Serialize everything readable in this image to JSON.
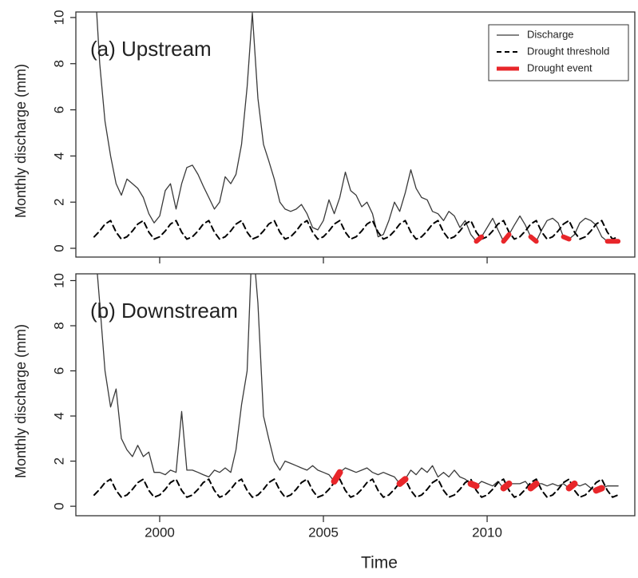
{
  "chart_data": [
    {
      "type": "line",
      "annotation": "(a) Upstream",
      "ylabel": "Monthly discharge (mm)",
      "x": [
        1998,
        1998.17,
        1998.33,
        1998.5,
        1998.67,
        1998.83,
        1999,
        1999.17,
        1999.33,
        1999.5,
        1999.67,
        1999.83,
        2000,
        2000.17,
        2000.33,
        2000.5,
        2000.67,
        2000.83,
        2001,
        2001.17,
        2001.33,
        2001.5,
        2001.67,
        2001.83,
        2002,
        2002.17,
        2002.33,
        2002.5,
        2002.67,
        2002.83,
        2003,
        2003.17,
        2003.33,
        2003.5,
        2003.67,
        2003.83,
        2004,
        2004.17,
        2004.33,
        2004.5,
        2004.67,
        2004.83,
        2005,
        2005.17,
        2005.33,
        2005.5,
        2005.67,
        2005.83,
        2006,
        2006.17,
        2006.33,
        2006.5,
        2006.67,
        2006.83,
        2007,
        2007.17,
        2007.33,
        2007.5,
        2007.67,
        2007.83,
        2008,
        2008.17,
        2008.33,
        2008.5,
        2008.67,
        2008.83,
        2009,
        2009.17,
        2009.33,
        2009.5,
        2009.67,
        2009.83,
        2010,
        2010.17,
        2010.33,
        2010.5,
        2010.67,
        2010.83,
        2011,
        2011.17,
        2011.33,
        2011.5,
        2011.67,
        2011.83,
        2012,
        2012.17,
        2012.33,
        2012.5,
        2012.67,
        2012.83,
        2013,
        2013.17,
        2013.33,
        2013.5,
        2013.67,
        2013.83,
        2014
      ],
      "series": [
        {
          "name": "Discharge",
          "color": "#3a3a3a",
          "width": 1.3,
          "dash": false,
          "values": [
            12,
            8,
            5.5,
            4,
            2.8,
            2.3,
            3,
            2.8,
            2.6,
            2.2,
            1.5,
            1.1,
            1.4,
            2.5,
            2.8,
            1.7,
            2.8,
            3.5,
            3.6,
            3.2,
            2.7,
            2.2,
            1.7,
            2,
            3.1,
            2.8,
            3.2,
            4.5,
            7,
            10.2,
            6.5,
            4.5,
            3.8,
            3,
            2,
            1.7,
            1.6,
            1.7,
            1.9,
            1.5,
            0.9,
            0.8,
            1.2,
            2.1,
            1.5,
            2.2,
            3.3,
            2.5,
            2.3,
            1.8,
            2,
            1.5,
            0.5,
            0.6,
            1.2,
            2,
            1.6,
            2.4,
            3.4,
            2.6,
            2.2,
            2.1,
            1.6,
            1.5,
            1.2,
            1.6,
            1.4,
            0.9,
            1.2,
            0.6,
            0.3,
            0.5,
            0.9,
            1.3,
            0.8,
            0.3,
            0.6,
            1,
            1.4,
            1,
            0.5,
            0.3,
            0.8,
            1.2,
            1.3,
            1.1,
            0.5,
            0.4,
            0.6,
            1.1,
            1.3,
            1.2,
            1,
            0.5,
            0.3,
            0.3,
            0.3
          ]
        },
        {
          "name": "Drought threshold",
          "color": "#000000",
          "width": 2,
          "dash": true,
          "values": [
            0.5,
            0.75,
            1.05,
            1.2,
            0.7,
            0.4,
            0.5,
            0.75,
            1.05,
            1.2,
            0.7,
            0.4,
            0.5,
            0.75,
            1.05,
            1.2,
            0.7,
            0.4,
            0.5,
            0.75,
            1.05,
            1.2,
            0.7,
            0.4,
            0.5,
            0.75,
            1.05,
            1.2,
            0.7,
            0.4,
            0.5,
            0.75,
            1.05,
            1.2,
            0.7,
            0.4,
            0.5,
            0.75,
            1.05,
            1.2,
            0.7,
            0.4,
            0.5,
            0.75,
            1.05,
            1.2,
            0.7,
            0.4,
            0.5,
            0.75,
            1.05,
            1.2,
            0.7,
            0.4,
            0.5,
            0.75,
            1.05,
            1.2,
            0.7,
            0.4,
            0.5,
            0.75,
            1.05,
            1.2,
            0.7,
            0.4,
            0.5,
            0.75,
            1.05,
            1.2,
            0.7,
            0.4,
            0.5,
            0.75,
            1.05,
            1.2,
            0.7,
            0.4,
            0.5,
            0.75,
            1.05,
            1.2,
            0.7,
            0.4,
            0.5,
            0.75,
            1.05,
            1.2,
            0.7,
            0.4,
            0.5,
            0.75,
            1.05,
            1.2,
            0.7,
            0.4,
            0.5
          ]
        },
        {
          "name": "Drought event",
          "color": "#e8262a",
          "width": 6,
          "dash": false,
          "values": [
            null,
            null,
            null,
            null,
            null,
            null,
            null,
            null,
            null,
            null,
            null,
            null,
            null,
            null,
            null,
            null,
            null,
            null,
            null,
            null,
            null,
            null,
            null,
            null,
            null,
            null,
            null,
            null,
            null,
            null,
            null,
            null,
            null,
            null,
            null,
            null,
            null,
            null,
            null,
            null,
            null,
            null,
            null,
            null,
            null,
            null,
            null,
            null,
            null,
            null,
            null,
            null,
            null,
            null,
            null,
            null,
            null,
            null,
            null,
            null,
            null,
            null,
            null,
            null,
            null,
            null,
            null,
            null,
            null,
            null,
            0.3,
            0.5,
            null,
            null,
            null,
            0.3,
            0.6,
            null,
            null,
            null,
            0.5,
            0.3,
            null,
            null,
            null,
            null,
            0.5,
            0.4,
            null,
            null,
            null,
            null,
            null,
            null,
            0.3,
            0.3,
            0.3
          ]
        }
      ],
      "xlim": [
        1997.44,
        2014.51
      ],
      "xticks": [
        2000,
        2005,
        2010
      ],
      "show_xtick_labels": false,
      "ylim": [
        -0.38,
        10.24
      ],
      "yticks": [
        0,
        2,
        4,
        6,
        8,
        10
      ],
      "legend": "top-right"
    },
    {
      "type": "line",
      "annotation": "(b) Downstream",
      "ylabel": "Monthly discharge (mm)",
      "xlabel": "Time",
      "x": [
        1998,
        1998.17,
        1998.33,
        1998.5,
        1998.67,
        1998.83,
        1999,
        1999.17,
        1999.33,
        1999.5,
        1999.67,
        1999.83,
        2000,
        2000.17,
        2000.33,
        2000.5,
        2000.67,
        2000.83,
        2001,
        2001.17,
        2001.33,
        2001.5,
        2001.67,
        2001.83,
        2002,
        2002.17,
        2002.33,
        2002.5,
        2002.67,
        2002.83,
        2003,
        2003.17,
        2003.33,
        2003.5,
        2003.67,
        2003.83,
        2004,
        2004.17,
        2004.33,
        2004.5,
        2004.67,
        2004.83,
        2005,
        2005.17,
        2005.33,
        2005.5,
        2005.67,
        2005.83,
        2006,
        2006.17,
        2006.33,
        2006.5,
        2006.67,
        2006.83,
        2007,
        2007.17,
        2007.33,
        2007.5,
        2007.67,
        2007.83,
        2008,
        2008.17,
        2008.33,
        2008.5,
        2008.67,
        2008.83,
        2009,
        2009.17,
        2009.33,
        2009.5,
        2009.67,
        2009.83,
        2010,
        2010.17,
        2010.33,
        2010.5,
        2010.67,
        2010.83,
        2011,
        2011.17,
        2011.33,
        2011.5,
        2011.67,
        2011.83,
        2012,
        2012.17,
        2012.33,
        2012.5,
        2012.67,
        2012.83,
        2013,
        2013.17,
        2013.33,
        2013.5,
        2013.67,
        2013.83,
        2014
      ],
      "series": [
        {
          "color": "#3a3a3a",
          "width": 1.3,
          "dash": false,
          "values": [
            12,
            9,
            6,
            4.4,
            5.2,
            3,
            2.5,
            2.2,
            2.7,
            2.2,
            2.4,
            1.5,
            1.5,
            1.4,
            1.6,
            1.5,
            4.2,
            1.6,
            1.6,
            1.5,
            1.4,
            1.3,
            1.6,
            1.5,
            1.7,
            1.5,
            2.5,
            4.5,
            6,
            12,
            9,
            4,
            3,
            2,
            1.6,
            2,
            1.9,
            1.8,
            1.7,
            1.6,
            1.8,
            1.6,
            1.5,
            1.4,
            1.1,
            1.5,
            1.7,
            1.6,
            1.5,
            1.6,
            1.7,
            1.5,
            1.4,
            1.5,
            1.4,
            1.3,
            1,
            1.2,
            1.6,
            1.4,
            1.7,
            1.5,
            1.8,
            1.3,
            1.5,
            1.3,
            1.6,
            1.3,
            1.2,
            1,
            0.9,
            1.1,
            1,
            0.9,
            1.1,
            0.8,
            1,
            1,
            1,
            1.1,
            0.8,
            1,
            1,
            0.9,
            1,
            0.9,
            1,
            0.8,
            1,
            0.9,
            1,
            0.8,
            0.7,
            0.8,
            0.9,
            0.9,
            0.9
          ]
        },
        {
          "color": "#000000",
          "width": 2,
          "dash": true,
          "values": [
            0.5,
            0.75,
            1.05,
            1.2,
            0.7,
            0.4,
            0.5,
            0.75,
            1.05,
            1.2,
            0.7,
            0.4,
            0.5,
            0.75,
            1.05,
            1.2,
            0.7,
            0.4,
            0.5,
            0.75,
            1.05,
            1.2,
            0.7,
            0.4,
            0.5,
            0.75,
            1.05,
            1.2,
            0.7,
            0.4,
            0.5,
            0.75,
            1.05,
            1.2,
            0.7,
            0.4,
            0.5,
            0.75,
            1.05,
            1.2,
            0.7,
            0.4,
            0.5,
            0.75,
            1.05,
            1.2,
            0.7,
            0.4,
            0.5,
            0.75,
            1.05,
            1.2,
            0.7,
            0.4,
            0.5,
            0.75,
            1.05,
            1.2,
            0.7,
            0.4,
            0.5,
            0.75,
            1.05,
            1.2,
            0.7,
            0.4,
            0.5,
            0.75,
            1.05,
            1.2,
            0.7,
            0.4,
            0.5,
            0.75,
            1.05,
            1.2,
            0.7,
            0.4,
            0.5,
            0.75,
            1.05,
            1.2,
            0.7,
            0.4,
            0.5,
            0.75,
            1.05,
            1.2,
            0.7,
            0.4,
            0.5,
            0.75,
            1.05,
            1.2,
            0.7,
            0.4,
            0.5
          ]
        },
        {
          "color": "#e8262a",
          "width": 8,
          "dash": false,
          "values": [
            null,
            null,
            null,
            null,
            null,
            null,
            null,
            null,
            null,
            null,
            null,
            null,
            null,
            null,
            null,
            null,
            null,
            null,
            null,
            null,
            null,
            null,
            null,
            null,
            null,
            null,
            null,
            null,
            null,
            null,
            null,
            null,
            null,
            null,
            null,
            null,
            null,
            null,
            null,
            null,
            null,
            null,
            null,
            null,
            1.1,
            1.5,
            null,
            null,
            null,
            null,
            null,
            null,
            null,
            null,
            null,
            null,
            1,
            1.2,
            null,
            null,
            null,
            null,
            null,
            null,
            null,
            null,
            null,
            null,
            null,
            1,
            0.9,
            null,
            null,
            null,
            null,
            0.8,
            1,
            null,
            null,
            null,
            0.8,
            1,
            null,
            null,
            null,
            null,
            null,
            0.8,
            1,
            null,
            null,
            null,
            0.7,
            0.8,
            null,
            null,
            null
          ]
        }
      ],
      "xlim": [
        1997.44,
        2014.51
      ],
      "xticks": [
        2000,
        2005,
        2010
      ],
      "show_xtick_labels": true,
      "ylim": [
        -0.42,
        10.3
      ],
      "yticks": [
        0,
        2,
        4,
        6,
        8,
        10
      ]
    }
  ]
}
